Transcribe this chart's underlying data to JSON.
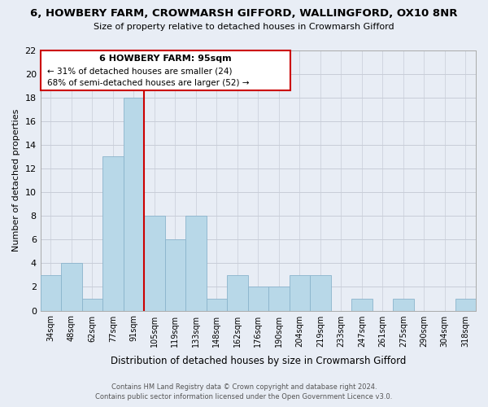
{
  "title": "6, HOWBERY FARM, CROWMARSH GIFFORD, WALLINGFORD, OX10 8NR",
  "subtitle": "Size of property relative to detached houses in Crowmarsh Gifford",
  "xlabel": "Distribution of detached houses by size in Crowmarsh Gifford",
  "ylabel": "Number of detached properties",
  "bar_color": "#b8d8e8",
  "bar_edge_color": "#8ab4cc",
  "categories": [
    "34sqm",
    "48sqm",
    "62sqm",
    "77sqm",
    "91sqm",
    "105sqm",
    "119sqm",
    "133sqm",
    "148sqm",
    "162sqm",
    "176sqm",
    "190sqm",
    "204sqm",
    "219sqm",
    "233sqm",
    "247sqm",
    "261sqm",
    "275sqm",
    "290sqm",
    "304sqm",
    "318sqm"
  ],
  "values": [
    3,
    4,
    1,
    13,
    18,
    8,
    6,
    8,
    1,
    3,
    2,
    2,
    3,
    3,
    0,
    1,
    0,
    1,
    0,
    0,
    1
  ],
  "ylim": [
    0,
    22
  ],
  "yticks": [
    0,
    2,
    4,
    6,
    8,
    10,
    12,
    14,
    16,
    18,
    20,
    22
  ],
  "vline_color": "#cc0000",
  "annotation_title": "6 HOWBERY FARM: 95sqm",
  "annotation_line1": "← 31% of detached houses are smaller (24)",
  "annotation_line2": "68% of semi-detached houses are larger (52) →",
  "footer1": "Contains HM Land Registry data © Crown copyright and database right 2024.",
  "footer2": "Contains public sector information licensed under the Open Government Licence v3.0.",
  "bg_color": "#e8edf5",
  "plot_bg_color": "#e8edf5",
  "grid_color": "#c8cdd8"
}
